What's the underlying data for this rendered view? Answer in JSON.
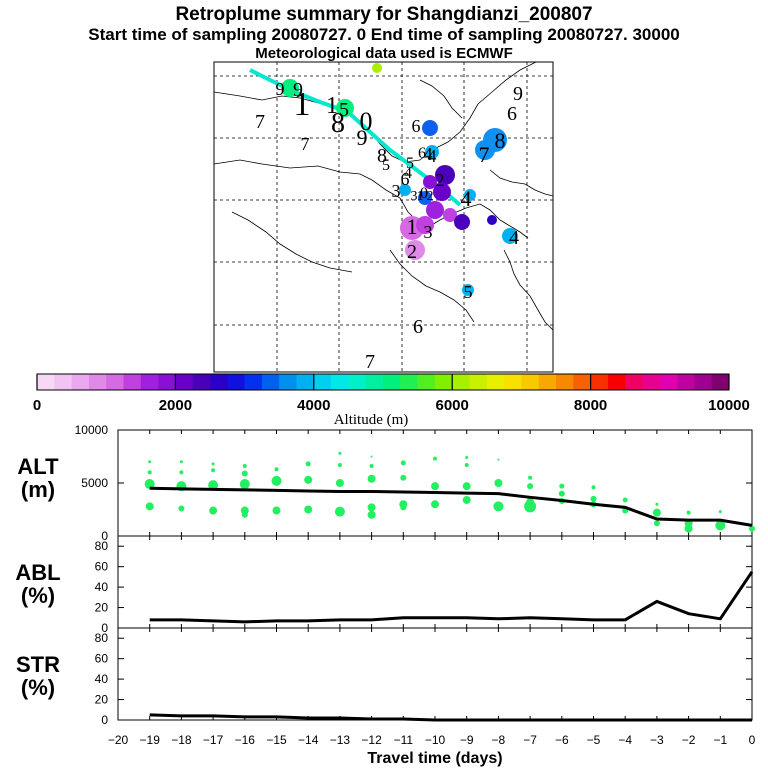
{
  "header": {
    "title": "Retroplume summary for Shangdianzi_200807",
    "subtitle": "Start time of sampling 20080727.     0     End time of sampling 20080727. 30000",
    "meteo": "Meteorological data used is ECMWF"
  },
  "colorbar": {
    "ticks": [
      "0",
      "2000",
      "4000",
      "6000",
      "8000",
      "10000"
    ],
    "label": "Altitude (m)",
    "colors": [
      "#f7d8f7",
      "#f2c4f2",
      "#eaa8ee",
      "#e08ae8",
      "#d66ae2",
      "#c040e0",
      "#a020e0",
      "#8a10d8",
      "#6a00c8",
      "#4a00b8",
      "#2a00c8",
      "#1010e0",
      "#0030f0",
      "#0060f0",
      "#0090f0",
      "#00b0f0",
      "#00d0f0",
      "#00e8e8",
      "#00f0c8",
      "#00f0a0",
      "#00f080",
      "#20f050",
      "#50f020",
      "#80f000",
      "#a8f000",
      "#c8f000",
      "#e8f000",
      "#f8e000",
      "#f8c800",
      "#f8a800",
      "#f88800",
      "#f86000",
      "#f83000",
      "#f80000",
      "#f00060",
      "#e80090",
      "#e000b0",
      "#c000a0",
      "#a00090",
      "#800070"
    ]
  },
  "map_labels": [
    {
      "t": "9",
      "c": "#000000"
    },
    {
      "t": "9",
      "c": "#000000"
    },
    {
      "t": "1",
      "c": "#000000"
    },
    {
      "t": "1",
      "c": "#000000"
    },
    {
      "t": "5",
      "c": "#000000"
    },
    {
      "t": "8",
      "c": "#000000"
    },
    {
      "t": "0",
      "c": "#000000"
    },
    {
      "t": "6",
      "c": "#000000"
    },
    {
      "t": "7",
      "c": "#000000"
    },
    {
      "t": "9",
      "c": "#000000"
    },
    {
      "t": "8",
      "c": "#000000"
    },
    {
      "t": "6",
      "c": "#000000"
    },
    {
      "t": "4",
      "c": "#000000"
    },
    {
      "t": "5",
      "c": "#000000"
    },
    {
      "t": "5",
      "c": "#000000"
    },
    {
      "t": "4",
      "c": "#000000"
    },
    {
      "t": "3",
      "c": "#000000"
    },
    {
      "t": "6",
      "c": "#000000"
    },
    {
      "t": "2",
      "c": "#000000"
    },
    {
      "t": "3",
      "c": "#000000"
    },
    {
      "t": "1",
      "c": "#000000"
    },
    {
      "t": "0",
      "c": "#000000"
    },
    {
      "t": "2",
      "c": "#000000"
    },
    {
      "t": "4",
      "c": "#000000"
    },
    {
      "t": "1",
      "c": "#000000"
    },
    {
      "t": "2",
      "c": "#000000"
    },
    {
      "t": "3",
      "c": "#000000"
    },
    {
      "t": "4",
      "c": "#000000"
    },
    {
      "t": "9",
      "c": "#000000"
    },
    {
      "t": "6",
      "c": "#000000"
    },
    {
      "t": "7",
      "c": "#000000"
    },
    {
      "t": "8",
      "c": "#000000"
    },
    {
      "t": "4",
      "c": "#000000"
    },
    {
      "t": "5",
      "c": "#000000"
    },
    {
      "t": "6",
      "c": "#000000"
    },
    {
      "t": "7",
      "c": "#000000"
    },
    {
      "t": "7",
      "c": "#000000"
    }
  ],
  "chart_data": [
    {
      "type": "scatter",
      "panel": "ALT",
      "ylabel_line1": "ALT",
      "ylabel_line2": "(m)",
      "ylim": [
        0,
        10000
      ],
      "yticks": [
        "0",
        "5000",
        "10000"
      ],
      "line_series": {
        "x": [
          -19,
          -18,
          -17,
          -16,
          -15,
          -14,
          -13,
          -12,
          -11,
          -10,
          -9,
          -8,
          -7,
          -6,
          -5,
          -4,
          -3,
          -2,
          -1,
          0
        ],
        "values": [
          4500,
          4450,
          4400,
          4350,
          4300,
          4250,
          4200,
          4200,
          4150,
          4100,
          4050,
          4000,
          3650,
          3350,
          3000,
          2700,
          1600,
          1500,
          1500,
          1000
        ]
      },
      "cluster_points": [
        {
          "x": -19,
          "y": 7000,
          "s": 1.5
        },
        {
          "x": -19,
          "y": 6000,
          "s": 2
        },
        {
          "x": -19,
          "y": 4900,
          "s": 5
        },
        {
          "x": -19,
          "y": 2800,
          "s": 4
        },
        {
          "x": -18,
          "y": 7000,
          "s": 1.5
        },
        {
          "x": -18,
          "y": 6000,
          "s": 2
        },
        {
          "x": -18,
          "y": 4700,
          "s": 5
        },
        {
          "x": -18,
          "y": 2600,
          "s": 3
        },
        {
          "x": -17,
          "y": 6800,
          "s": 1.5
        },
        {
          "x": -17,
          "y": 6200,
          "s": 2
        },
        {
          "x": -17,
          "y": 4800,
          "s": 5
        },
        {
          "x": -17,
          "y": 2400,
          "s": 4
        },
        {
          "x": -16,
          "y": 6600,
          "s": 2
        },
        {
          "x": -16,
          "y": 5900,
          "s": 3
        },
        {
          "x": -16,
          "y": 4900,
          "s": 5
        },
        {
          "x": -16,
          "y": 2400,
          "s": 4
        },
        {
          "x": -16,
          "y": 2000,
          "s": 3
        },
        {
          "x": -15,
          "y": 6300,
          "s": 2
        },
        {
          "x": -15,
          "y": 5200,
          "s": 5
        },
        {
          "x": -15,
          "y": 2400,
          "s": 4
        },
        {
          "x": -14,
          "y": 6800,
          "s": 2.5
        },
        {
          "x": -14,
          "y": 5300,
          "s": 4
        },
        {
          "x": -14,
          "y": 2500,
          "s": 4
        },
        {
          "x": -13,
          "y": 7800,
          "s": 1.5
        },
        {
          "x": -13,
          "y": 6700,
          "s": 2
        },
        {
          "x": -13,
          "y": 5000,
          "s": 4
        },
        {
          "x": -13,
          "y": 2300,
          "s": 5
        },
        {
          "x": -12,
          "y": 7500,
          "s": 1
        },
        {
          "x": -12,
          "y": 6600,
          "s": 2
        },
        {
          "x": -12,
          "y": 5400,
          "s": 4
        },
        {
          "x": -12,
          "y": 2700,
          "s": 4
        },
        {
          "x": -12,
          "y": 2000,
          "s": 4
        },
        {
          "x": -11,
          "y": 6900,
          "s": 2.5
        },
        {
          "x": -11,
          "y": 5500,
          "s": 3
        },
        {
          "x": -11,
          "y": 3000,
          "s": 4
        },
        {
          "x": -11,
          "y": 2700,
          "s": 3
        },
        {
          "x": -10,
          "y": 7300,
          "s": 2
        },
        {
          "x": -10,
          "y": 4700,
          "s": 4
        },
        {
          "x": -10,
          "y": 3000,
          "s": 4
        },
        {
          "x": -9,
          "y": 7400,
          "s": 1.5
        },
        {
          "x": -9,
          "y": 6700,
          "s": 2
        },
        {
          "x": -9,
          "y": 4700,
          "s": 4
        },
        {
          "x": -9,
          "y": 3400,
          "s": 4
        },
        {
          "x": -8,
          "y": 7200,
          "s": 1
        },
        {
          "x": -8,
          "y": 5000,
          "s": 4
        },
        {
          "x": -8,
          "y": 2800,
          "s": 5
        },
        {
          "x": -7,
          "y": 5500,
          "s": 2
        },
        {
          "x": -7,
          "y": 4700,
          "s": 3
        },
        {
          "x": -7,
          "y": 2800,
          "s": 6
        },
        {
          "x": -7,
          "y": 3200,
          "s": 4
        },
        {
          "x": -6,
          "y": 4700,
          "s": 2.5
        },
        {
          "x": -6,
          "y": 4000,
          "s": 3
        },
        {
          "x": -6,
          "y": 3300,
          "s": 3
        },
        {
          "x": -5,
          "y": 4600,
          "s": 2
        },
        {
          "x": -5,
          "y": 3500,
          "s": 3
        },
        {
          "x": -5,
          "y": 3000,
          "s": 3
        },
        {
          "x": -4,
          "y": 3400,
          "s": 2.5
        },
        {
          "x": -4,
          "y": 2400,
          "s": 3
        },
        {
          "x": -3,
          "y": 3000,
          "s": 1.5
        },
        {
          "x": -3,
          "y": 2200,
          "s": 4
        },
        {
          "x": -3,
          "y": 1200,
          "s": 3
        },
        {
          "x": -2,
          "y": 2200,
          "s": 2
        },
        {
          "x": -2,
          "y": 1200,
          "s": 4
        },
        {
          "x": -2,
          "y": 700,
          "s": 4
        },
        {
          "x": -1,
          "y": 2300,
          "s": 1.5
        },
        {
          "x": -1,
          "y": 1000,
          "s": 5
        },
        {
          "x": 0,
          "y": 700,
          "s": 3
        }
      ]
    },
    {
      "type": "line",
      "panel": "ABL",
      "ylabel_line1": "ABL",
      "ylabel_line2": "(%)",
      "ylim": [
        0,
        90
      ],
      "yticks": [
        "0",
        "20",
        "40",
        "60",
        "80"
      ],
      "x": [
        -19,
        -18,
        -17,
        -16,
        -15,
        -14,
        -13,
        -12,
        -11,
        -10,
        -9,
        -8,
        -7,
        -6,
        -5,
        -4,
        -3,
        -2,
        -1,
        0
      ],
      "values": [
        8,
        8,
        7,
        6,
        7,
        7,
        8,
        8,
        10,
        10,
        10,
        9,
        10,
        9,
        8,
        8,
        26,
        14,
        9,
        55
      ]
    },
    {
      "type": "line",
      "panel": "STR",
      "ylabel_line1": "STR",
      "ylabel_line2": "(%)",
      "ylim": [
        0,
        90
      ],
      "yticks": [
        "0",
        "20",
        "40",
        "60",
        "80"
      ],
      "x": [
        -19,
        -18,
        -17,
        -16,
        -15,
        -14,
        -13,
        -12,
        -11,
        -10,
        -9,
        -8,
        -7,
        -6,
        -5,
        -4,
        -3,
        -2,
        -1,
        0
      ],
      "values": [
        5,
        4,
        4,
        3,
        3,
        2,
        2,
        1,
        1,
        0,
        0,
        0,
        0,
        0,
        0,
        0,
        0,
        0,
        0,
        0
      ]
    }
  ],
  "xaxis": {
    "ticks": [
      "−20",
      "−19",
      "−18",
      "−17",
      "−16",
      "−15",
      "−14",
      "−13",
      "−12",
      "−11",
      "−10",
      "−9",
      "−8",
      "−7",
      "−6",
      "−5",
      "−4",
      "−3",
      "−2",
      "−1",
      "0"
    ],
    "label": "Travel time (days)"
  }
}
